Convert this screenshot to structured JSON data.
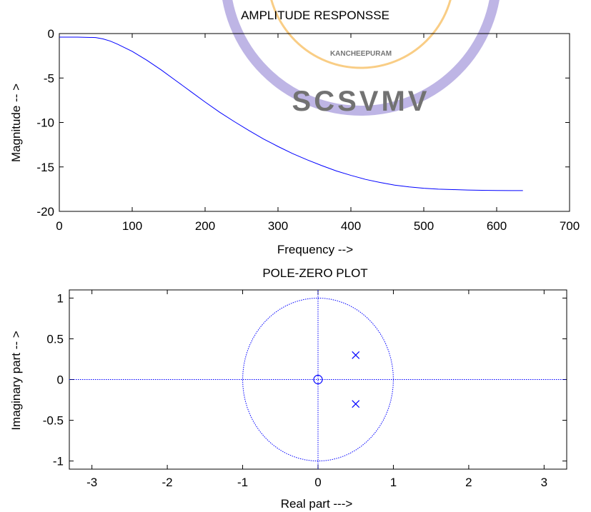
{
  "colors": {
    "line": "#0000ff",
    "axes": "#000000",
    "background": "#ffffff"
  },
  "watermark": {
    "text": "SCSVMV",
    "small_text": "KANCHEEPURAM",
    "color": "#f5a623",
    "arc_color": "#8a7ad0"
  },
  "chart_data": [
    {
      "type": "line",
      "title": "AMPLITUDE RESPONSSE",
      "xlabel": "Frequency -->",
      "ylabel": "Magnitude -- >",
      "xlim": [
        0,
        700
      ],
      "ylim": [
        -20,
        0
      ],
      "xticks": [
        0,
        100,
        200,
        300,
        400,
        500,
        600,
        700
      ],
      "yticks": [
        0,
        -5,
        -10,
        -15,
        -20
      ],
      "xtick_labels": [
        "0",
        "100",
        "200",
        "300",
        "400",
        "500",
        "600",
        "700"
      ],
      "ytick_labels": [
        "0",
        "-5",
        "-10",
        "-15",
        "-20"
      ],
      "grid": false,
      "series": [
        {
          "color": "#0000ff",
          "x": [
            0,
            25,
            50,
            60,
            70,
            80,
            90,
            100,
            120,
            140,
            160,
            180,
            200,
            220,
            240,
            260,
            280,
            300,
            320,
            340,
            360,
            380,
            400,
            420,
            440,
            460,
            480,
            500,
            520,
            540,
            560,
            580,
            600,
            620,
            636
          ],
          "y": [
            -0.4,
            -0.4,
            -0.45,
            -0.6,
            -0.85,
            -1.2,
            -1.6,
            -2.0,
            -3.0,
            -4.1,
            -5.3,
            -6.5,
            -7.7,
            -8.85,
            -9.9,
            -10.9,
            -11.85,
            -12.7,
            -13.5,
            -14.2,
            -14.85,
            -15.45,
            -15.95,
            -16.4,
            -16.75,
            -17.05,
            -17.25,
            -17.4,
            -17.5,
            -17.55,
            -17.6,
            -17.63,
            -17.65,
            -17.66,
            -17.66
          ]
        }
      ]
    },
    {
      "type": "scatter",
      "title": "POLE-ZERO PLOT",
      "xlabel": "Real part --->",
      "ylabel": "Imaginary part -- >",
      "xlim": [
        -3.3,
        3.3
      ],
      "ylim": [
        -1.1,
        1.1
      ],
      "xticks": [
        -3,
        -2,
        -1,
        0,
        1,
        2,
        3
      ],
      "yticks": [
        1,
        0.5,
        0,
        -0.5,
        -1
      ],
      "xtick_labels": [
        "-3",
        "-2",
        "-1",
        "0",
        "1",
        "2",
        "3"
      ],
      "ytick_labels": [
        "1",
        "0.5",
        "0",
        "-0.5",
        "-1"
      ],
      "grid": false,
      "unit_circle": true,
      "zeros": [
        {
          "x": 0,
          "y": 0
        }
      ],
      "poles": [
        {
          "x": 0.5,
          "y": 0.3
        },
        {
          "x": 0.5,
          "y": -0.3
        }
      ]
    }
  ]
}
